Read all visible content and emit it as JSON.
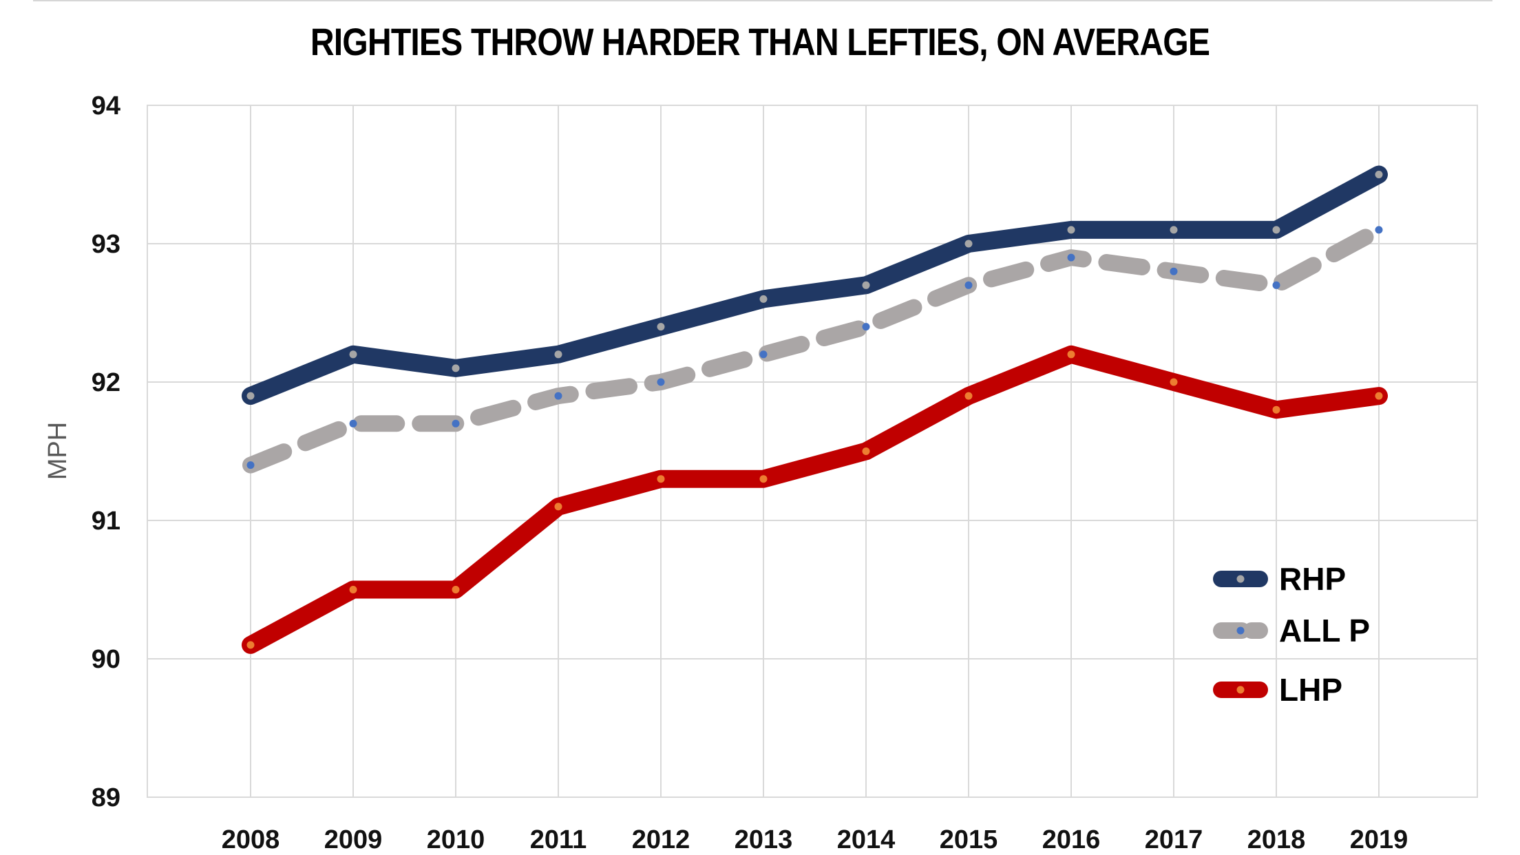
{
  "chart_data": {
    "type": "line",
    "title": "RIGHTIES THROW HARDER THAN LEFTIES, ON AVERAGE",
    "xlabel": "",
    "ylabel": "MPH",
    "ylim": [
      89,
      94
    ],
    "yticks": [
      89,
      90,
      91,
      92,
      93,
      94
    ],
    "categories": [
      "2008",
      "2009",
      "2010",
      "2011",
      "2012",
      "2013",
      "2014",
      "2015",
      "2016",
      "2017",
      "2018",
      "2019"
    ],
    "grid": "on",
    "legend_position": "bottom-right",
    "series": [
      {
        "name": "RHP",
        "color": "#203864",
        "marker_color": "#a6a6a6",
        "style": "solid",
        "values": [
          91.9,
          92.2,
          92.1,
          92.2,
          92.4,
          92.6,
          92.7,
          93.0,
          93.1,
          93.1,
          93.1,
          93.5
        ]
      },
      {
        "name": "ALL P",
        "color": "#aaa6a6",
        "marker_color": "#4472c4",
        "style": "dashed",
        "values": [
          91.4,
          91.7,
          91.7,
          91.9,
          92.0,
          92.2,
          92.4,
          92.7,
          92.9,
          92.8,
          92.7,
          93.1
        ]
      },
      {
        "name": "LHP",
        "color": "#c00000",
        "marker_color": "#ed7d31",
        "style": "solid",
        "values": [
          90.1,
          90.5,
          90.5,
          91.1,
          91.3,
          91.3,
          91.5,
          91.9,
          92.2,
          92.0,
          91.8,
          91.9
        ]
      }
    ]
  }
}
